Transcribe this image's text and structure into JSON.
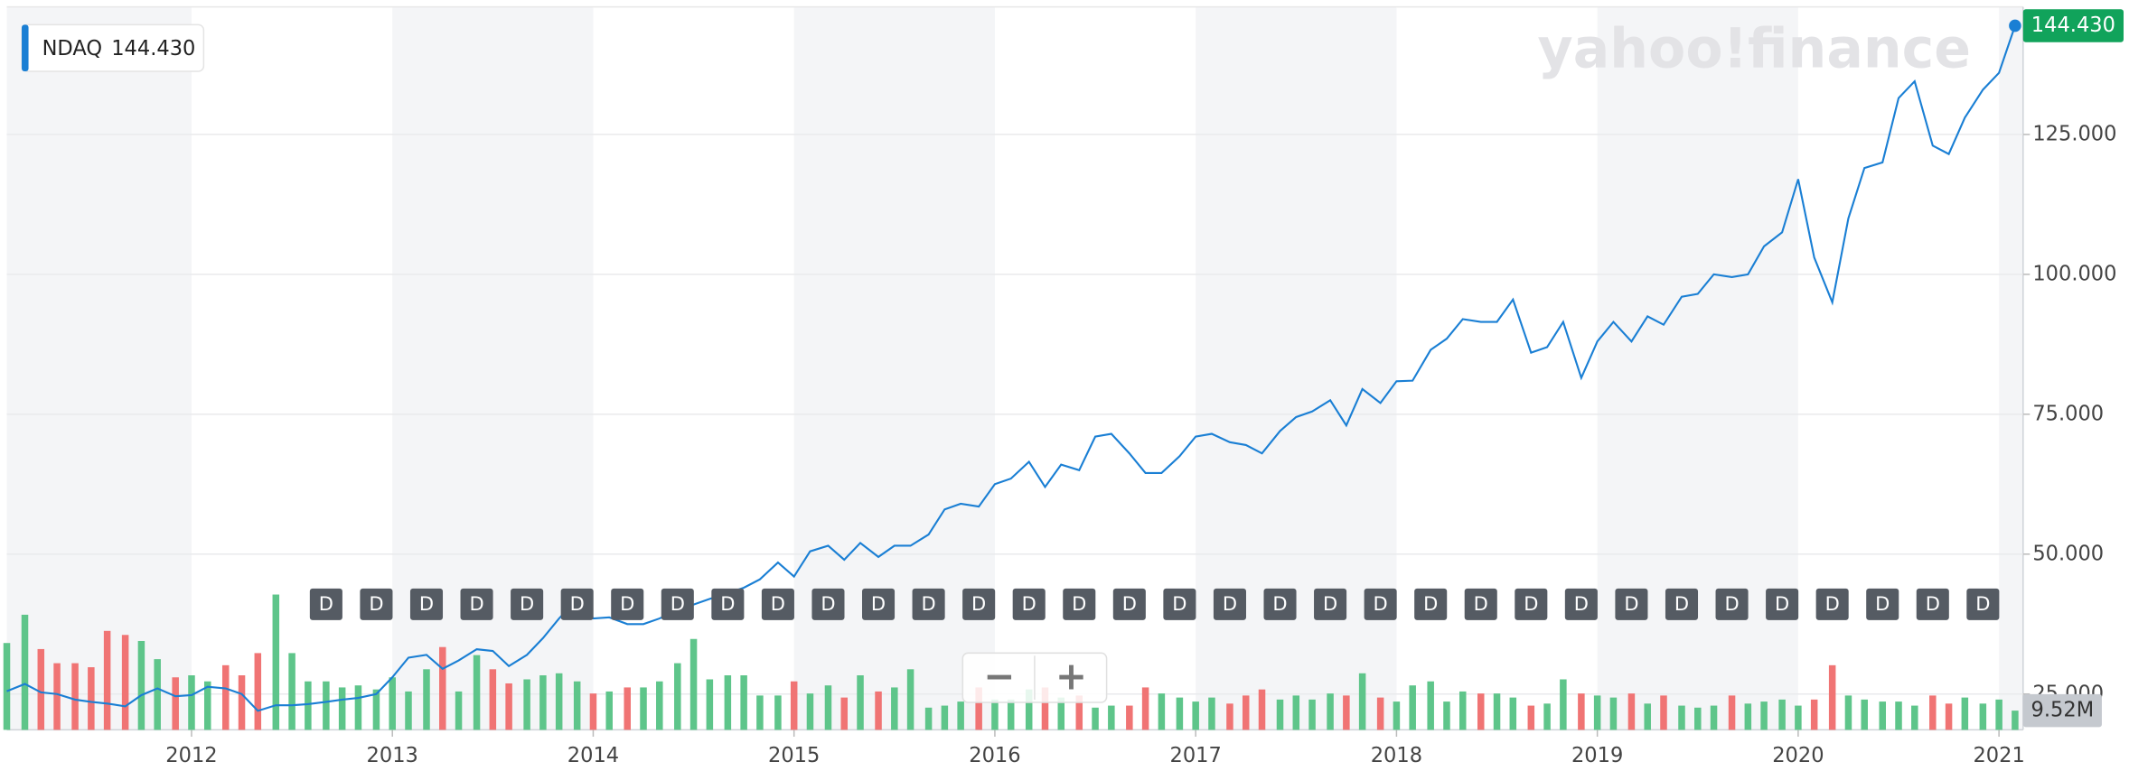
{
  "chart_data": {
    "type": "line",
    "symbol": "NDAQ",
    "legend_value": "144.430",
    "price_label": "144.430",
    "volume_label": "9.52M",
    "watermark": "yahoo!finance",
    "zoom_out": "−",
    "zoom_in": "+",
    "x": [
      2011.08,
      2011.17,
      2011.25,
      2011.33,
      2011.42,
      2011.5,
      2011.58,
      2011.67,
      2011.75,
      2011.83,
      2011.92,
      2012,
      2012.08,
      2012.17,
      2012.25,
      2012.33,
      2012.42,
      2012.5,
      2012.58,
      2012.67,
      2012.75,
      2012.83,
      2012.92,
      2013,
      2013.08,
      2013.17,
      2013.25,
      2013.33,
      2013.42,
      2013.5,
      2013.58,
      2013.67,
      2013.75,
      2013.83,
      2013.92,
      2014,
      2014.08,
      2014.17,
      2014.25,
      2014.33,
      2014.42,
      2014.5,
      2014.58,
      2014.67,
      2014.75,
      2014.83,
      2014.92,
      2015,
      2015.08,
      2015.17,
      2015.25,
      2015.33,
      2015.42,
      2015.5,
      2015.58,
      2015.67,
      2015.75,
      2015.83,
      2015.92,
      2016,
      2016.08,
      2016.17,
      2016.25,
      2016.33,
      2016.42,
      2016.5,
      2016.58,
      2016.67,
      2016.75,
      2016.83,
      2016.92,
      2017,
      2017.08,
      2017.17,
      2017.25,
      2017.33,
      2017.42,
      2017.5,
      2017.58,
      2017.67,
      2017.75,
      2017.83,
      2017.92,
      2018,
      2018.08,
      2018.17,
      2018.25,
      2018.33,
      2018.42,
      2018.5,
      2018.58,
      2018.67,
      2018.75,
      2018.83,
      2018.92,
      2019,
      2019.08,
      2019.17,
      2019.25,
      2019.33,
      2019.42,
      2019.5,
      2019.58,
      2019.67,
      2019.75,
      2019.83,
      2019.92,
      2020,
      2020.08,
      2020.17,
      2020.25,
      2020.33,
      2020.42,
      2020.5,
      2020.58,
      2020.67,
      2020.75,
      2020.83,
      2020.92,
      2021,
      2021.08
    ],
    "series": [
      {
        "name": "NDAQ",
        "color": "#1a7fd4",
        "values": [
          25.5,
          26.8,
          25.3,
          25.0,
          24.0,
          23.6,
          23.3,
          22.8,
          24.8,
          26.0,
          24.6,
          24.8,
          26.3,
          26.0,
          25.0,
          22.0,
          23.0,
          23.0,
          23.2,
          23.6,
          24.0,
          24.3,
          25.0,
          28.0,
          31.5,
          32.0,
          29.5,
          31.0,
          33.0,
          32.7,
          30.0,
          32.0,
          35.0,
          38.5,
          42.0,
          38.5,
          38.7,
          37.5,
          37.5,
          38.5,
          40.0,
          41.0,
          42.0,
          43.0,
          44.0,
          45.5,
          48.5,
          46.0,
          50.5,
          51.5,
          49.0,
          52.0,
          49.5,
          51.5,
          51.5,
          53.5,
          58.0,
          59.0,
          58.5,
          62.5,
          63.5,
          66.5,
          62.0,
          66.0,
          65.0,
          71.0,
          71.5,
          68.0,
          64.5,
          64.5,
          67.5,
          71.0,
          71.5,
          70.0,
          69.5,
          68.0,
          72.0,
          74.5,
          75.5,
          77.5,
          73.0,
          79.5,
          77.0,
          80.9,
          81.0,
          86.5,
          88.5,
          92.0,
          91.5,
          91.5,
          95.5,
          86.0,
          87.0,
          91.5,
          81.5,
          88.0,
          91.5,
          88.0,
          92.5,
          91.0,
          96.0,
          96.5,
          100.0,
          99.5,
          100.0,
          105.0,
          107.5,
          117.0,
          103.0,
          95.0,
          110.0,
          119.0,
          120.0,
          131.5,
          134.5,
          123.0,
          121.5,
          128.0,
          133.0,
          136.0,
          144.43
        ]
      },
      {
        "name": "Volume",
        "axis": "y2",
        "up_color": "#5ec58a",
        "down_color": "#f07474",
        "values": [
          43,
          57,
          40,
          33,
          33,
          31,
          49,
          47,
          44,
          35,
          26,
          27,
          24,
          32,
          27,
          38,
          67,
          38,
          24,
          24,
          21,
          22,
          20,
          26,
          19,
          30,
          41,
          19,
          37,
          30,
          23,
          25,
          27,
          28,
          24,
          18,
          19,
          21,
          21,
          24,
          33,
          45,
          25,
          27,
          27,
          17,
          17,
          24,
          18,
          22,
          16,
          27,
          19,
          21,
          30,
          11,
          12,
          14,
          21,
          15,
          15,
          20,
          21,
          16,
          17,
          11,
          12,
          12,
          21,
          18,
          16,
          14,
          16,
          13,
          17,
          20,
          15,
          17,
          15,
          18,
          17,
          28,
          16,
          14,
          22,
          24,
          14,
          19,
          18,
          18,
          16,
          12,
          13,
          25,
          18,
          17,
          16,
          18,
          13,
          17,
          12,
          11,
          12,
          17,
          13,
          14,
          15,
          12,
          15,
          32,
          17,
          15,
          14,
          14,
          12,
          17,
          13,
          16,
          13,
          15,
          9.52
        ]
      }
    ],
    "dividends": {
      "label": "D",
      "x": [
        2012.67,
        2012.92,
        2013.17,
        2013.42,
        2013.67,
        2013.92,
        2014.17,
        2014.42,
        2014.67,
        2014.92,
        2015.17,
        2015.42,
        2015.67,
        2015.92,
        2016.17,
        2016.42,
        2016.67,
        2016.92,
        2017.17,
        2017.42,
        2017.67,
        2017.92,
        2018.17,
        2018.42,
        2018.67,
        2018.92,
        2019.17,
        2019.42,
        2019.67,
        2019.92,
        2020.17,
        2020.42,
        2020.67,
        2020.92
      ]
    },
    "xlim": [
      2011.08,
      2021.12
    ],
    "xticks": [
      2012,
      2013,
      2014,
      2015,
      2016,
      2017,
      2018,
      2019,
      2020,
      2021
    ],
    "ylim": [
      18.6,
      147.8
    ],
    "yticks": [
      {
        "value": 25,
        "label": "25.000"
      },
      {
        "value": 50,
        "label": "50.000"
      },
      {
        "value": 75,
        "label": "75.000"
      },
      {
        "value": 100,
        "label": "100.000"
      },
      {
        "value": 125,
        "label": "125.000"
      }
    ],
    "y2lim": [
      0,
      358
    ],
    "grid": true
  }
}
